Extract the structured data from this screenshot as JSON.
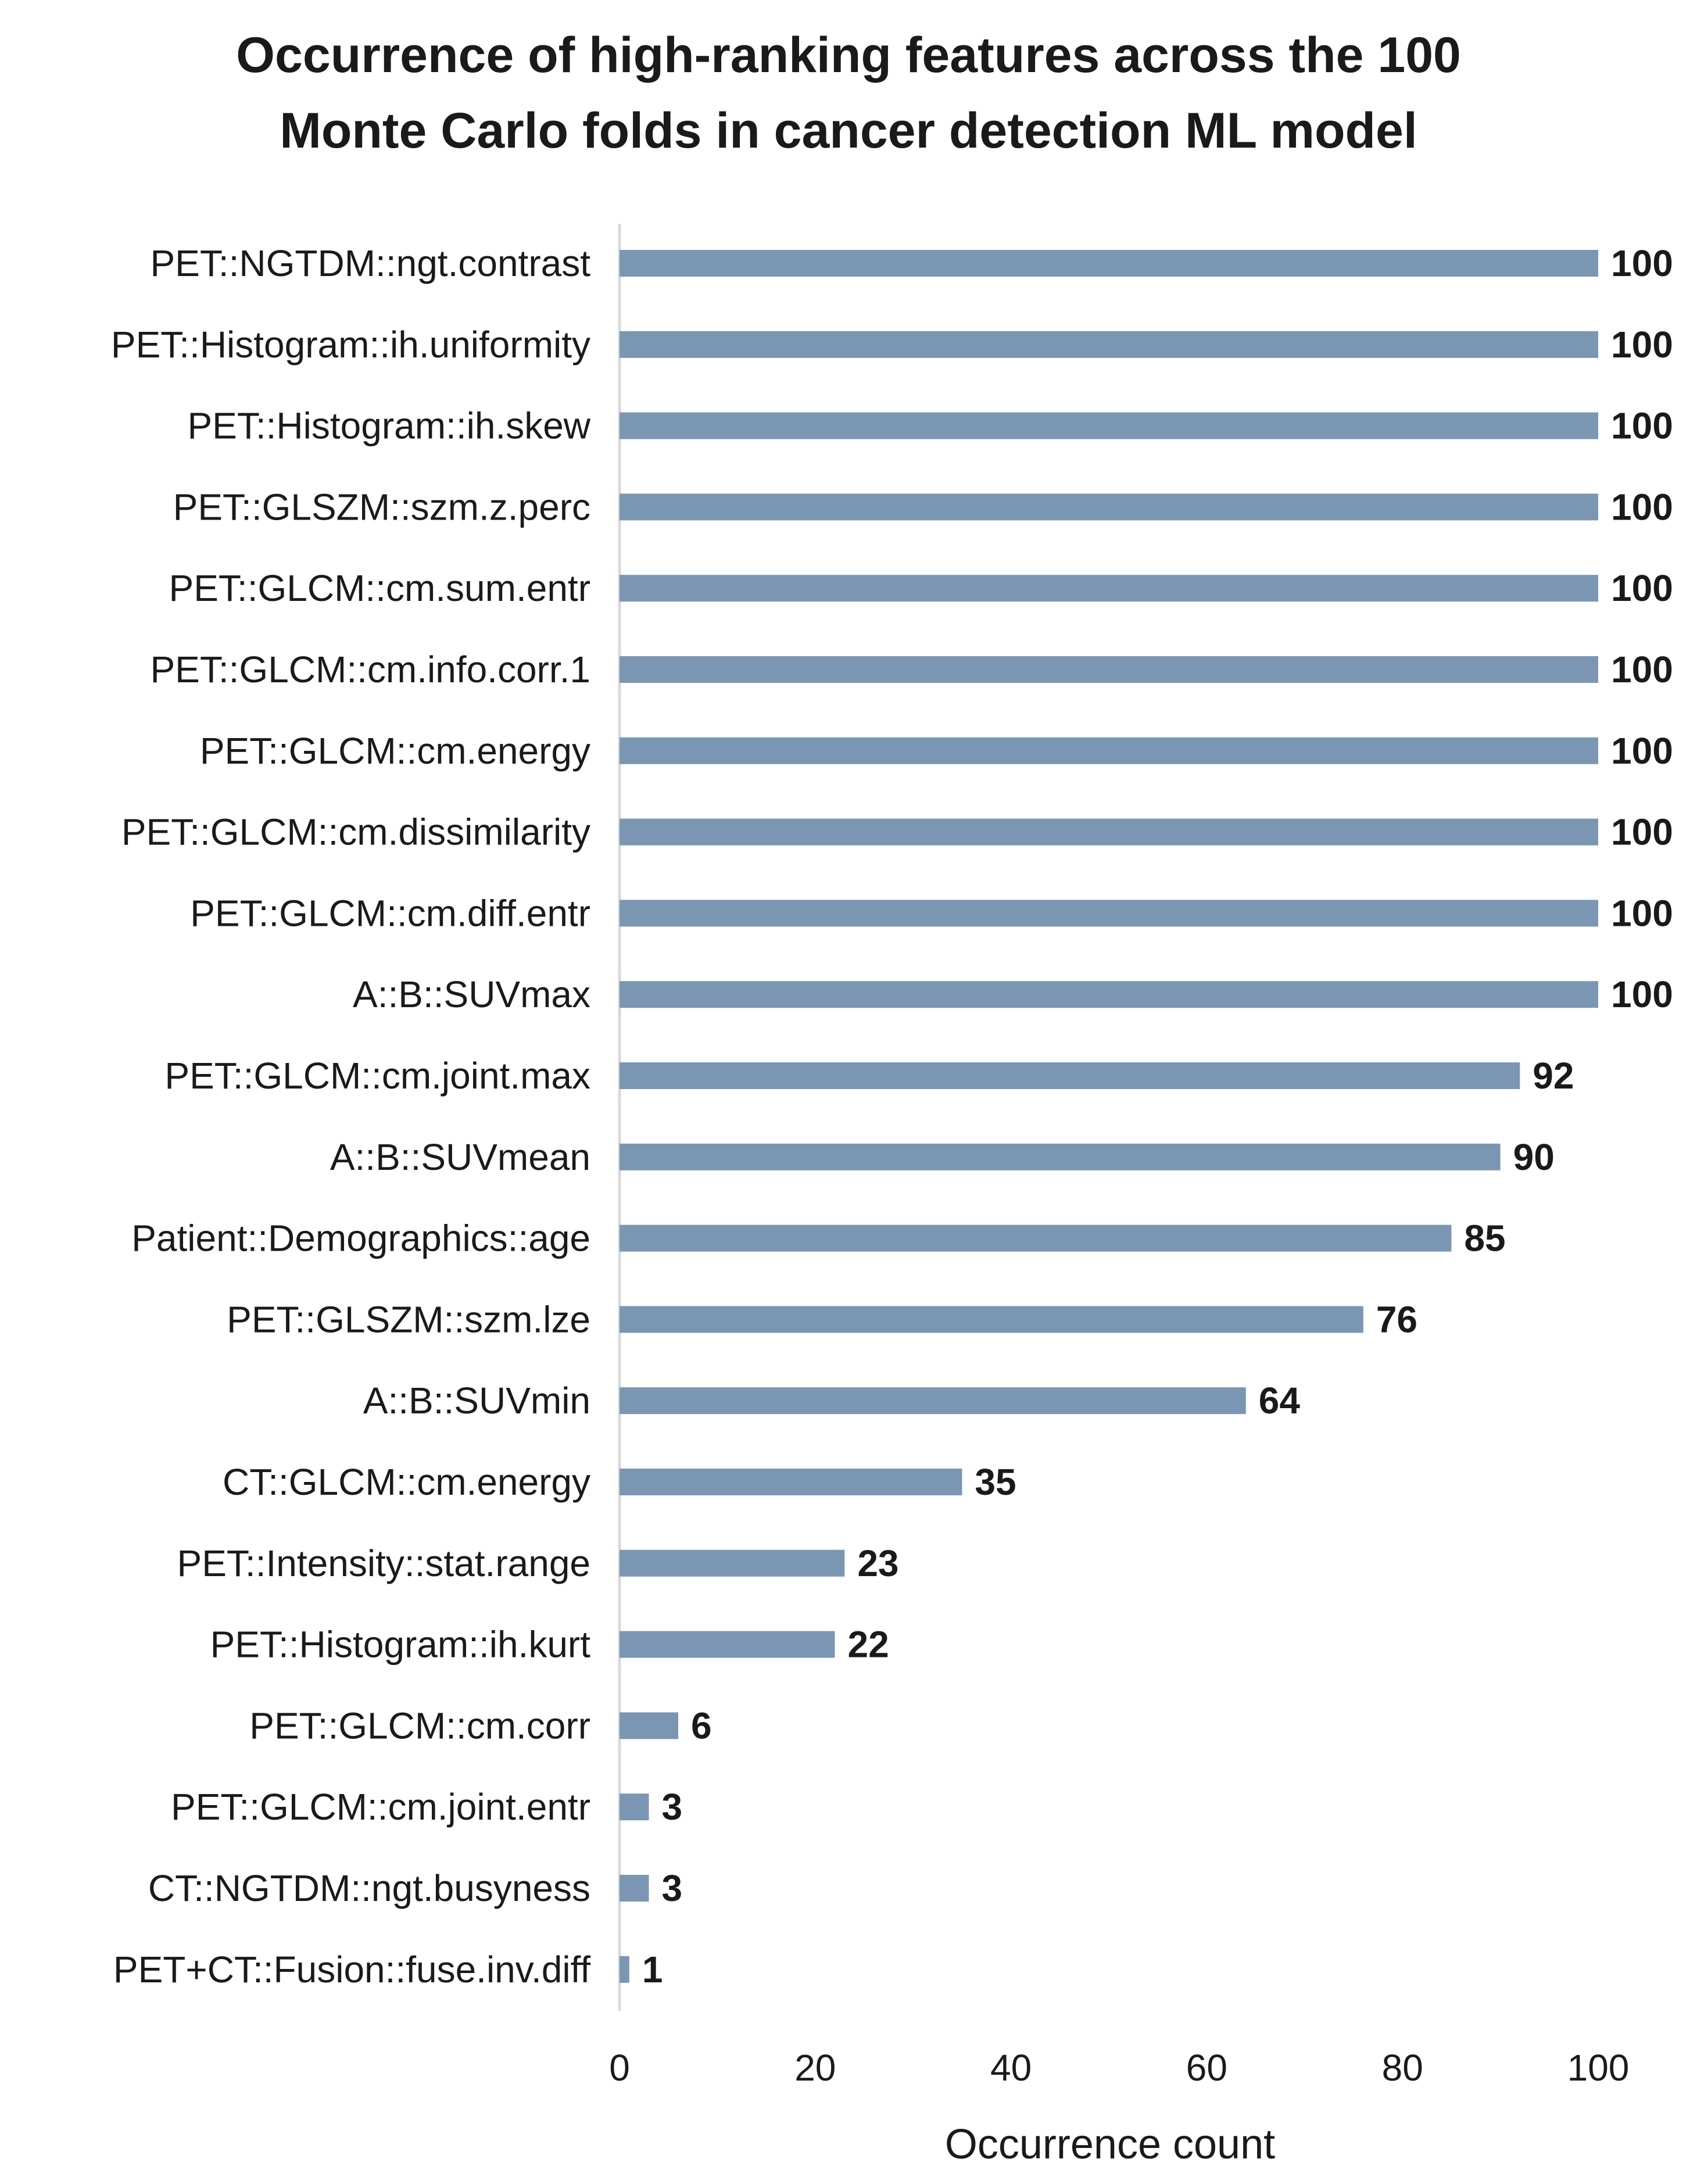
{
  "chart_data": {
    "type": "bar",
    "orientation": "horizontal",
    "title_lines": [
      "Occurrence of high-ranking features across the 100",
      "Monte Carlo folds in cancer detection ML model"
    ],
    "categories": [
      "PET::NGTDM::ngt.contrast",
      "PET::Histogram::ih.uniformity",
      "PET::Histogram::ih.skew",
      "PET::GLSZM::szm.z.perc",
      "PET::GLCM::cm.sum.entr",
      "PET::GLCM::cm.info.corr.1",
      "PET::GLCM::cm.energy",
      "PET::GLCM::cm.dissimilarity",
      "PET::GLCM::cm.diff.entr",
      "A::B::SUVmax",
      "PET::GLCM::cm.joint.max",
      "A::B::SUVmean",
      "Patient::Demographics::age",
      "PET::GLSZM::szm.lze",
      "A::B::SUVmin",
      "CT::GLCM::cm.energy",
      "PET::Intensity::stat.range",
      "PET::Histogram::ih.kurt",
      "PET::GLCM::cm.corr",
      "PET::GLCM::cm.joint.entr",
      "CT::NGTDM::ngt.busyness",
      "PET+CT::Fusion::fuse.inv.diff"
    ],
    "values": [
      100,
      100,
      100,
      100,
      100,
      100,
      100,
      100,
      100,
      100,
      92,
      90,
      85,
      76,
      64,
      35,
      23,
      22,
      6,
      3,
      3,
      1
    ],
    "xlabel": "Occurrence count",
    "ylabel": "",
    "xlim": [
      0,
      100
    ],
    "xticks": [
      0,
      20,
      40,
      60,
      80,
      100
    ],
    "grid": false,
    "bar_color": "#7b96b2",
    "axis_color": "#d9d9d9"
  }
}
